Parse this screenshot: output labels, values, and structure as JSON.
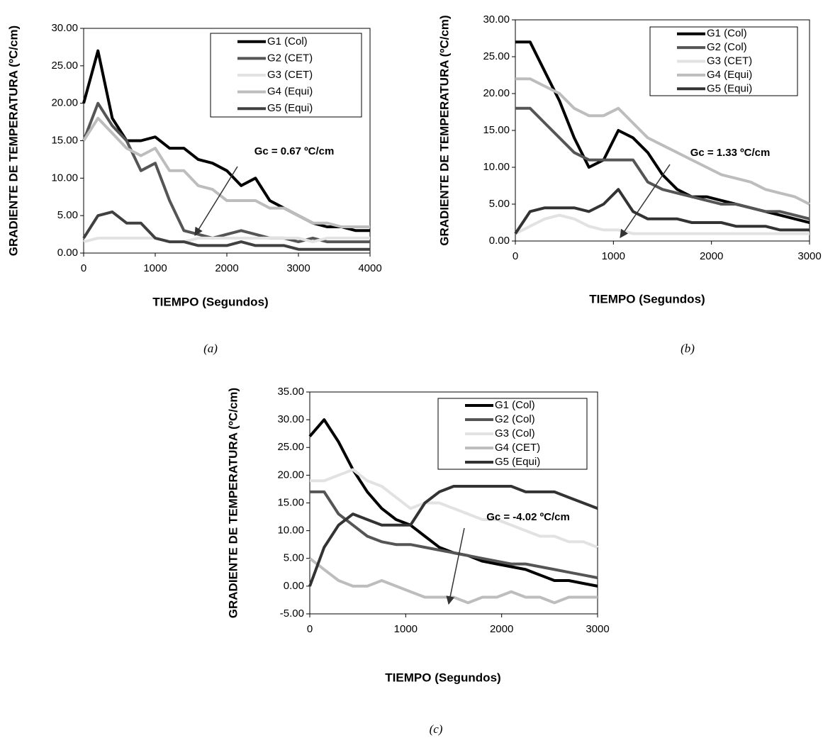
{
  "chart_data": [
    {
      "type": "line",
      "caption": "(a)",
      "x_label": "TIEMPO (Segundos)",
      "y_label": "GRADIENTE DE TEMPERATURA (ºC/cm)",
      "annotation": "Gc = 0.67 ºC/cm",
      "x": [
        0,
        200,
        400,
        600,
        800,
        1000,
        1200,
        1400,
        1600,
        1800,
        2000,
        2200,
        2400,
        2600,
        2800,
        3000,
        3200,
        3400,
        3600,
        3800,
        4000
      ],
      "xlim": [
        0,
        4000
      ],
      "xticks": [
        0,
        1000,
        2000,
        3000,
        4000
      ],
      "ylim": [
        0,
        30
      ],
      "yticks": [
        {
          "value": 0,
          "label": "0.00"
        },
        {
          "value": 5,
          "label": "5.00"
        },
        {
          "value": 10,
          "label": "10.00"
        },
        {
          "value": 15,
          "label": "15.00"
        },
        {
          "value": 20,
          "label": "20.00"
        },
        {
          "value": 25,
          "label": "25.00"
        },
        {
          "value": 30,
          "label": "30.00"
        }
      ],
      "series": [
        {
          "name": "G1 (Col)",
          "color": "#000000",
          "values": [
            20,
            27,
            18,
            15,
            15,
            15.5,
            14,
            14,
            12.5,
            12,
            11,
            9,
            10,
            7,
            6,
            5,
            4,
            3.5,
            3.5,
            3,
            3
          ]
        },
        {
          "name": "G2 (CET)",
          "color": "#555555",
          "values": [
            15,
            20,
            17,
            15,
            11,
            12,
            7,
            3,
            2.5,
            2,
            2.5,
            3,
            2.5,
            2,
            2,
            1.5,
            2,
            1.5,
            1.5,
            1.5,
            1.5
          ]
        },
        {
          "name": "G3 (CET)",
          "color": "#e2e2e2",
          "values": [
            1.5,
            2,
            2,
            2,
            2,
            2,
            1.5,
            1.5,
            2,
            2,
            2,
            2,
            2,
            2,
            2,
            2,
            1.5,
            2,
            2,
            2,
            2
          ]
        },
        {
          "name": "G4 (Equi)",
          "color": "#bdbdbd",
          "values": [
            15,
            18,
            16,
            14,
            13,
            14,
            11,
            11,
            9,
            8.5,
            7,
            7,
            7,
            6,
            6,
            5,
            4,
            4,
            3.5,
            3.5,
            3.5
          ]
        },
        {
          "name": "G5 (Equi)",
          "color": "#404040",
          "values": [
            2,
            5,
            5.5,
            4,
            4,
            2,
            1.5,
            1.5,
            1,
            1,
            1,
            1.5,
            1,
            1,
            1,
            0.5,
            0.5,
            0.5,
            0.5,
            0.5,
            0.5
          ]
        }
      ]
    },
    {
      "type": "line",
      "caption": "(b)",
      "x_label": "TIEMPO (Segundos)",
      "y_label": "GRADIENTE DE TEMPERATURA (ºC/cm)",
      "annotation": "Gc = 1.33 ºC/cm",
      "x": [
        0,
        150,
        300,
        450,
        600,
        750,
        900,
        1050,
        1200,
        1350,
        1500,
        1650,
        1800,
        1950,
        2100,
        2250,
        2400,
        2550,
        2700,
        2850,
        3000
      ],
      "xlim": [
        0,
        3000
      ],
      "xticks": [
        0,
        1000,
        2000,
        3000
      ],
      "ylim": [
        0,
        30
      ],
      "yticks": [
        {
          "value": 0,
          "label": "0.00"
        },
        {
          "value": 5,
          "label": "5.00"
        },
        {
          "value": 10,
          "label": "10.00"
        },
        {
          "value": 15,
          "label": "15.00"
        },
        {
          "value": 20,
          "label": "20.00"
        },
        {
          "value": 25,
          "label": "25.00"
        },
        {
          "value": 30,
          "label": "30.00"
        }
      ],
      "series": [
        {
          "name": "G1 (Col)",
          "color": "#000000",
          "values": [
            27,
            27,
            23,
            19,
            14,
            10,
            11,
            15,
            14,
            12,
            9,
            7,
            6,
            6,
            5.5,
            5,
            4.5,
            4,
            3.5,
            3,
            2.5
          ]
        },
        {
          "name": "G2 (Col)",
          "color": "#555555",
          "values": [
            18,
            18,
            16,
            14,
            12,
            11,
            11,
            11,
            11,
            8,
            7,
            6.5,
            6,
            5.5,
            5,
            5,
            4.5,
            4,
            4,
            3.5,
            3
          ]
        },
        {
          "name": "G3 (CET)",
          "color": "#e2e2e2",
          "values": [
            1,
            2,
            3,
            3.5,
            3,
            2,
            1.5,
            1.5,
            1,
            1,
            1,
            1,
            1,
            1,
            1,
            1,
            1,
            1,
            1,
            1,
            1
          ]
        },
        {
          "name": "G4 (Equi)",
          "color": "#bdbdbd",
          "values": [
            22,
            22,
            21,
            20,
            18,
            17,
            17,
            18,
            16,
            14,
            13,
            12,
            11,
            10,
            9,
            8.5,
            8,
            7,
            6.5,
            6,
            5
          ]
        },
        {
          "name": "G5 (Equi)",
          "color": "#333333",
          "values": [
            1,
            4,
            4.5,
            4.5,
            4.5,
            4,
            5,
            7,
            4,
            3,
            3,
            3,
            2.5,
            2.5,
            2.5,
            2,
            2,
            2,
            1.5,
            1.5,
            1.5
          ]
        }
      ]
    },
    {
      "type": "line",
      "caption": "(c)",
      "x_label": "TIEMPO (Segundos)",
      "y_label": "GRADIENTE DE TEMPERATURA (ºC/cm)",
      "annotation": "Gc = -4.02 ºC/cm",
      "x": [
        0,
        150,
        300,
        450,
        600,
        750,
        900,
        1050,
        1200,
        1350,
        1500,
        1650,
        1800,
        1950,
        2100,
        2250,
        2400,
        2550,
        2700,
        2850,
        3000
      ],
      "xlim": [
        0,
        3000
      ],
      "xticks": [
        0,
        1000,
        2000,
        3000
      ],
      "ylim": [
        -5,
        35
      ],
      "yticks": [
        {
          "value": -5,
          "label": "-5.00"
        },
        {
          "value": 0,
          "label": "0.00"
        },
        {
          "value": 5,
          "label": "5.00"
        },
        {
          "value": 10,
          "label": "10.00"
        },
        {
          "value": 15,
          "label": "15.00"
        },
        {
          "value": 20,
          "label": "20.00"
        },
        {
          "value": 25,
          "label": "25.00"
        },
        {
          "value": 30,
          "label": "30.00"
        },
        {
          "value": 35,
          "label": "35.00"
        }
      ],
      "series": [
        {
          "name": "G1 (Col)",
          "color": "#000000",
          "values": [
            27,
            30,
            26,
            21,
            17,
            14,
            12,
            11,
            9,
            7,
            6,
            5.5,
            4.5,
            4,
            3.5,
            3,
            2,
            1,
            1,
            0.5,
            0
          ]
        },
        {
          "name": "G2 (Col)",
          "color": "#555555",
          "values": [
            17,
            17,
            13,
            11,
            9,
            8,
            7.5,
            7.5,
            7,
            6.5,
            6,
            5.5,
            5,
            4.5,
            4,
            4,
            3.5,
            3,
            2.5,
            2,
            1.5
          ]
        },
        {
          "name": "G3 (Col)",
          "color": "#e2e2e2",
          "values": [
            19,
            19,
            20,
            21,
            19,
            18,
            16,
            14,
            15,
            15,
            14,
            13,
            12,
            12,
            11,
            10,
            9,
            9,
            8,
            8,
            7
          ]
        },
        {
          "name": "G4 (CET)",
          "color": "#bdbdbd",
          "values": [
            5,
            3,
            1,
            0,
            0,
            1,
            0,
            -1,
            -2,
            -2,
            -2,
            -3,
            -2,
            -2,
            -1,
            -2,
            -2,
            -3,
            -2,
            -2,
            -2
          ]
        },
        {
          "name": "G5 (Equi)",
          "color": "#333333",
          "values": [
            0,
            7,
            11,
            13,
            12,
            11,
            11,
            11,
            15,
            17,
            18,
            18,
            18,
            18,
            18,
            17,
            17,
            17,
            16,
            15,
            14
          ]
        }
      ]
    }
  ]
}
